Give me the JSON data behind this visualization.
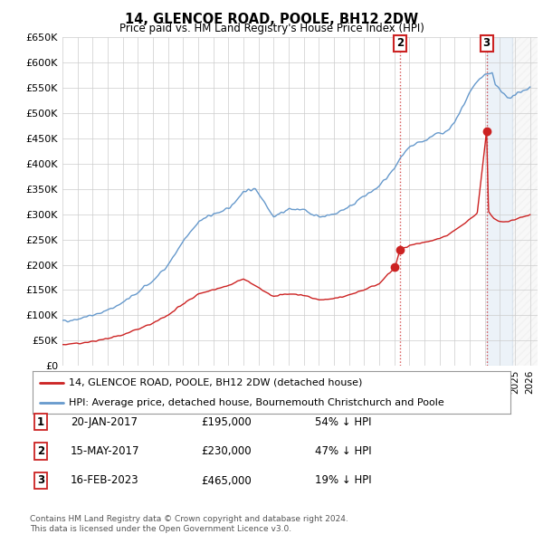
{
  "title": "14, GLENCOE ROAD, POOLE, BH12 2DW",
  "subtitle": "Price paid vs. HM Land Registry's House Price Index (HPI)",
  "ylim": [
    0,
    650000
  ],
  "yticks": [
    0,
    50000,
    100000,
    150000,
    200000,
    250000,
    300000,
    350000,
    400000,
    450000,
    500000,
    550000,
    600000,
    650000
  ],
  "ytick_labels": [
    "£0",
    "£50K",
    "£100K",
    "£150K",
    "£200K",
    "£250K",
    "£300K",
    "£350K",
    "£400K",
    "£450K",
    "£500K",
    "£550K",
    "£600K",
    "£650K"
  ],
  "xlim_start": 1995.0,
  "xlim_end": 2026.5,
  "hpi_color": "#6699cc",
  "price_color": "#cc2222",
  "sale1_date": 2017.05,
  "sale1_price": 195000,
  "sale2_date": 2017.38,
  "sale2_price": 230000,
  "sale3_date": 2023.12,
  "sale3_price": 465000,
  "vline_date_12": 2017.38,
  "vline_date_3": 2023.12,
  "shade_start": 2023.12,
  "shade_end": 2024.8,
  "hatch_start": 2024.8,
  "hatch_end": 2026.5,
  "legend_label_red": "14, GLENCOE ROAD, POOLE, BH12 2DW (detached house)",
  "legend_label_blue": "HPI: Average price, detached house, Bournemouth Christchurch and Poole",
  "transaction_labels": [
    "1",
    "2",
    "3"
  ],
  "transaction_dates": [
    "20-JAN-2017",
    "15-MAY-2017",
    "16-FEB-2023"
  ],
  "transaction_prices": [
    "£195,000",
    "£230,000",
    "£465,000"
  ],
  "transaction_hpi": [
    "54% ↓ HPI",
    "47% ↓ HPI",
    "19% ↓ HPI"
  ],
  "footer": "Contains HM Land Registry data © Crown copyright and database right 2024.\nThis data is licensed under the Open Government Licence v3.0.",
  "background_color": "#ffffff",
  "grid_color": "#cccccc"
}
